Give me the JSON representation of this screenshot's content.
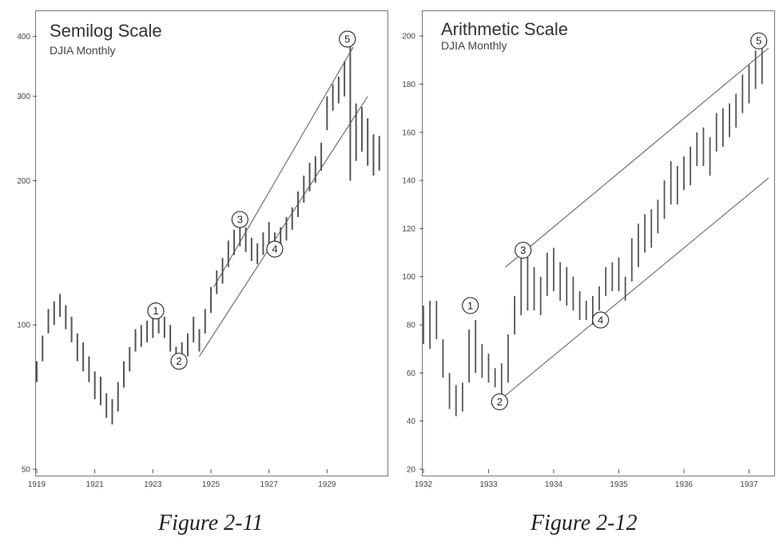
{
  "figures": [
    {
      "title": "Semilog Scale",
      "subtitle": "DJIA Monthly",
      "caption": "Figure 2-11"
    },
    {
      "title": "Arithmetic Scale",
      "subtitle": "DJIA Monthly",
      "caption": "Figure 2-12"
    }
  ],
  "chart_data": [
    {
      "type": "ohlc",
      "title": "Semilog Scale",
      "subtitle": "DJIA Monthly",
      "y_scale": "log",
      "ylim": [
        50,
        450
      ],
      "xlim": [
        1919,
        1931.0
      ],
      "y_ticks": [
        50,
        100,
        200,
        300,
        400
      ],
      "x_ticks": [
        "1919",
        "1921",
        "1923",
        "1925",
        "1927",
        "1929"
      ],
      "x_tick_values": [
        1919,
        1921,
        1923,
        1925,
        1927,
        1929
      ],
      "waves": [
        {
          "label": "1",
          "x": 1923.1,
          "y": 107
        },
        {
          "label": "2",
          "x": 1923.9,
          "y": 84
        },
        {
          "label": "3",
          "x": 1926.0,
          "y": 166
        },
        {
          "label": "4",
          "x": 1927.2,
          "y": 144
        },
        {
          "label": "5",
          "x": 1929.7,
          "y": 395
        }
      ],
      "series": [
        {
          "x": [
            1919.0,
            1919.2,
            1919.4,
            1919.6,
            1919.8,
            1920.0,
            1920.2,
            1920.4,
            1920.6,
            1920.8,
            1921.0,
            1921.2,
            1921.4,
            1921.6,
            1921.8,
            1922.0,
            1922.2,
            1922.4,
            1922.6,
            1922.8,
            1923.0,
            1923.2,
            1923.4,
            1923.6,
            1923.8,
            1924.0,
            1924.2,
            1924.4,
            1924.6,
            1924.8,
            1925.0,
            1925.2,
            1925.4,
            1925.6,
            1925.8,
            1926.0,
            1926.2,
            1926.4,
            1926.6,
            1926.8,
            1927.0,
            1927.2,
            1927.4,
            1927.6,
            1927.8,
            1928.0,
            1928.2,
            1928.4,
            1928.6,
            1928.8,
            1929.0,
            1929.2,
            1929.4,
            1929.6,
            1929.8,
            1930.0,
            1930.2,
            1930.4,
            1930.6,
            1930.8
          ],
          "high": [
            84,
            95,
            108,
            112,
            116,
            110,
            104,
            96,
            92,
            86,
            80,
            78,
            72,
            70,
            76,
            84,
            90,
            98,
            100,
            102,
            104,
            106,
            104,
            100,
            90,
            92,
            96,
            104,
            98,
            108,
            120,
            130,
            138,
            150,
            158,
            164,
            160,
            152,
            148,
            156,
            164,
            156,
            160,
            168,
            176,
            190,
            205,
            218,
            225,
            240,
            300,
            318,
            330,
            355,
            400,
            290,
            285,
            270,
            250,
            248
          ],
          "low": [
            76,
            84,
            96,
            100,
            104,
            98,
            92,
            84,
            80,
            76,
            70,
            68,
            64,
            62,
            66,
            74,
            80,
            88,
            90,
            92,
            94,
            96,
            94,
            88,
            82,
            84,
            86,
            92,
            88,
            96,
            106,
            116,
            122,
            132,
            140,
            146,
            142,
            136,
            134,
            140,
            146,
            140,
            144,
            150,
            158,
            168,
            180,
            190,
            198,
            210,
            255,
            280,
            290,
            300,
            200,
            220,
            230,
            215,
            205,
            210
          ]
        }
      ],
      "channels": [
        {
          "from": {
            "x": 1925.1,
            "y": 120
          },
          "to": {
            "x": 1929.9,
            "y": 380
          }
        },
        {
          "from": {
            "x": 1924.6,
            "y": 86
          },
          "to": {
            "x": 1930.4,
            "y": 300
          }
        }
      ]
    },
    {
      "type": "ohlc",
      "title": "Arithmetic Scale",
      "subtitle": "DJIA Monthly",
      "y_scale": "linear",
      "ylim": [
        20,
        210
      ],
      "xlim": [
        1932.0,
        1937.35
      ],
      "y_ticks": [
        20,
        40,
        60,
        80,
        100,
        120,
        140,
        160,
        180,
        200
      ],
      "x_ticks": [
        "1932",
        "1933",
        "1934",
        "1935",
        "1936",
        "1937"
      ],
      "x_tick_values": [
        1932,
        1933,
        1934,
        1935,
        1936,
        1937
      ],
      "waves": [
        {
          "label": "1",
          "x": 1932.72,
          "y": 88
        },
        {
          "label": "2",
          "x": 1933.17,
          "y": 48
        },
        {
          "label": "3",
          "x": 1933.53,
          "y": 111
        },
        {
          "label": "4",
          "x": 1934.72,
          "y": 82
        },
        {
          "label": "5",
          "x": 1937.15,
          "y": 198
        }
      ],
      "series": [
        {
          "x": [
            1932.0,
            1932.1,
            1932.2,
            1932.3,
            1932.4,
            1932.5,
            1932.6,
            1932.7,
            1932.8,
            1932.9,
            1933.0,
            1933.1,
            1933.2,
            1933.3,
            1933.4,
            1933.5,
            1933.6,
            1933.7,
            1933.8,
            1933.9,
            1934.0,
            1934.1,
            1934.2,
            1934.3,
            1934.4,
            1934.5,
            1934.6,
            1934.7,
            1934.8,
            1934.9,
            1935.0,
            1935.1,
            1935.2,
            1935.3,
            1935.4,
            1935.5,
            1935.6,
            1935.7,
            1935.8,
            1935.9,
            1936.0,
            1936.1,
            1936.2,
            1936.3,
            1936.4,
            1936.5,
            1936.6,
            1936.7,
            1936.8,
            1936.9,
            1937.0,
            1937.1,
            1937.2
          ],
          "high": [
            88,
            90,
            90,
            74,
            60,
            55,
            56,
            78,
            82,
            72,
            68,
            62,
            64,
            76,
            92,
            110,
            108,
            104,
            100,
            110,
            112,
            106,
            104,
            100,
            94,
            90,
            92,
            96,
            104,
            106,
            108,
            100,
            116,
            122,
            126,
            128,
            132,
            140,
            148,
            146,
            150,
            154,
            160,
            162,
            158,
            168,
            170,
            172,
            176,
            184,
            188,
            194,
            198
          ],
          "low": [
            72,
            70,
            74,
            58,
            45,
            42,
            44,
            56,
            60,
            58,
            56,
            54,
            50,
            56,
            76,
            84,
            86,
            86,
            84,
            92,
            94,
            90,
            88,
            86,
            82,
            82,
            80,
            86,
            92,
            94,
            94,
            90,
            98,
            104,
            110,
            112,
            118,
            124,
            130,
            130,
            136,
            138,
            146,
            146,
            142,
            152,
            154,
            158,
            162,
            168,
            172,
            178,
            180
          ]
        }
      ],
      "channels": [
        {
          "from": {
            "x": 1933.26,
            "y": 104
          },
          "to": {
            "x": 1937.3,
            "y": 195
          }
        },
        {
          "from": {
            "x": 1933.14,
            "y": 48
          },
          "to": {
            "x": 1937.3,
            "y": 141
          }
        }
      ]
    }
  ]
}
